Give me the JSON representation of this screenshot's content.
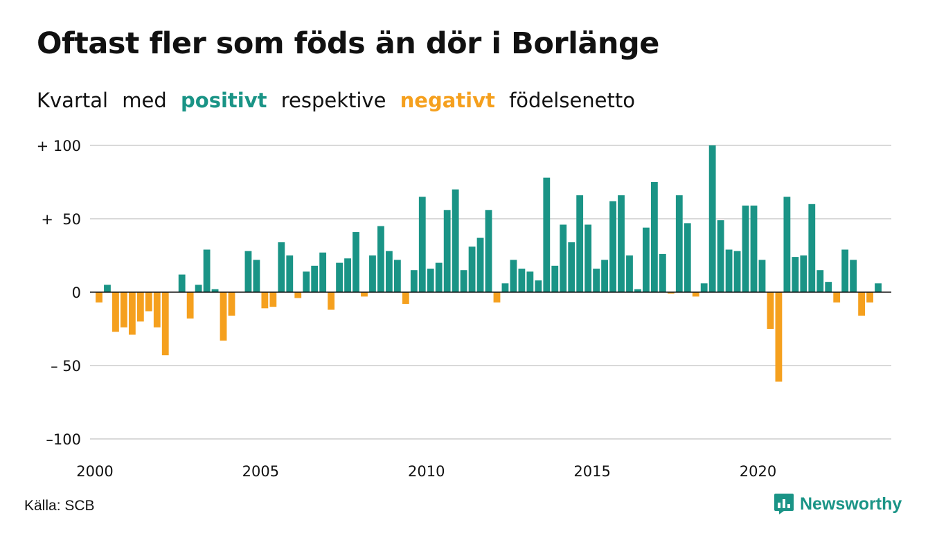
{
  "title": "Oftast fler som föds än dör i Borlänge",
  "subtitle": {
    "part1": "Kvartal",
    "part2": "med",
    "positive": "positivt",
    "part3": "respektive",
    "negative": "negativt",
    "part4": "födelsenetto"
  },
  "colors": {
    "positive": "#1a9486",
    "negative": "#f5a01e",
    "grid": "#d9d9d9",
    "zero": "#111111"
  },
  "source": "Källa: SCB",
  "brand": {
    "name": "Newsworthy",
    "icon": "chart-speech-bubble-icon"
  },
  "chart_data": {
    "type": "bar",
    "title": "Oftast fler som föds än dör i Borlänge",
    "xlabel": "",
    "ylabel": "",
    "ylim": [
      -100,
      100
    ],
    "yticks": [
      100,
      50,
      0,
      -50,
      -100
    ],
    "ytick_labels": [
      "+ 100",
      "+  50",
      "0",
      "– 50",
      "–100"
    ],
    "xticks": [
      2000,
      2005,
      2010,
      2015,
      2020
    ],
    "xtick_labels": [
      "2000",
      "2005",
      "2010",
      "2015",
      "2020"
    ],
    "grid": true,
    "legend": "none",
    "x": [
      "2000Q1",
      "2000Q2",
      "2000Q3",
      "2000Q4",
      "2001Q1",
      "2001Q2",
      "2001Q3",
      "2001Q4",
      "2002Q1",
      "2002Q2",
      "2002Q3",
      "2002Q4",
      "2003Q1",
      "2003Q2",
      "2003Q3",
      "2003Q4",
      "2004Q1",
      "2004Q2",
      "2004Q3",
      "2004Q4",
      "2005Q1",
      "2005Q2",
      "2005Q3",
      "2005Q4",
      "2006Q1",
      "2006Q2",
      "2006Q3",
      "2006Q4",
      "2007Q1",
      "2007Q2",
      "2007Q3",
      "2007Q4",
      "2008Q1",
      "2008Q2",
      "2008Q3",
      "2008Q4",
      "2009Q1",
      "2009Q2",
      "2009Q3",
      "2009Q4",
      "2010Q1",
      "2010Q2",
      "2010Q3",
      "2010Q4",
      "2011Q1",
      "2011Q2",
      "2011Q3",
      "2011Q4",
      "2012Q1",
      "2012Q2",
      "2012Q3",
      "2012Q4",
      "2013Q1",
      "2013Q2",
      "2013Q3",
      "2013Q4",
      "2014Q1",
      "2014Q2",
      "2014Q3",
      "2014Q4",
      "2015Q1",
      "2015Q2",
      "2015Q3",
      "2015Q4",
      "2016Q1",
      "2016Q2",
      "2016Q3",
      "2016Q4",
      "2017Q1",
      "2017Q2",
      "2017Q3",
      "2017Q4",
      "2018Q1",
      "2018Q2",
      "2018Q3",
      "2018Q4",
      "2019Q1",
      "2019Q2",
      "2019Q3",
      "2019Q4",
      "2020Q1",
      "2020Q2",
      "2020Q3",
      "2020Q4",
      "2021Q1",
      "2021Q2",
      "2021Q3",
      "2021Q4",
      "2022Q1",
      "2022Q2",
      "2022Q3",
      "2022Q4",
      "2023Q1",
      "2023Q2",
      "2023Q3",
      "2023Q4"
    ],
    "values": [
      -7,
      5,
      -27,
      -24,
      -29,
      -20,
      -13,
      -24,
      -43,
      0,
      12,
      -18,
      5,
      29,
      2,
      -33,
      -16,
      0,
      28,
      22,
      -11,
      -10,
      34,
      25,
      -4,
      14,
      18,
      27,
      -12,
      20,
      23,
      41,
      -3,
      25,
      45,
      28,
      22,
      -8,
      15,
      65,
      16,
      20,
      56,
      70,
      15,
      31,
      37,
      56,
      -7,
      6,
      22,
      16,
      14,
      8,
      78,
      18,
      46,
      34,
      66,
      46,
      16,
      22,
      62,
      66,
      25,
      2,
      44,
      75,
      26,
      -1,
      66,
      47,
      -3,
      6,
      100,
      49,
      29,
      28,
      59,
      59,
      22,
      -25,
      -61,
      65,
      24,
      25,
      60,
      15,
      7,
      -7,
      29,
      22,
      -16,
      -7,
      6,
      0
    ]
  }
}
